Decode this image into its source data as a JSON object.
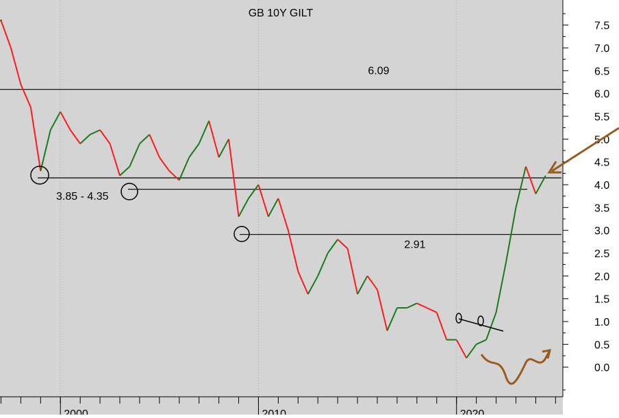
{
  "chart_data": {
    "type": "line",
    "title": "GB 10Y GILT",
    "x": [
      1997.0,
      1997.5,
      1998.0,
      1998.5,
      1999.0,
      1999.5,
      2000.0,
      2000.5,
      2001.0,
      2001.5,
      2002.0,
      2002.5,
      2003.0,
      2003.5,
      2004.0,
      2004.5,
      2005.0,
      2005.5,
      2006.0,
      2006.5,
      2007.0,
      2007.5,
      2008.0,
      2008.5,
      2009.0,
      2009.5,
      2010.0,
      2010.5,
      2011.0,
      2011.5,
      2012.0,
      2012.5,
      2013.0,
      2013.5,
      2014.0,
      2014.5,
      2015.0,
      2015.5,
      2016.0,
      2016.5,
      2017.0,
      2017.5,
      2018.0,
      2018.5,
      2019.0,
      2019.5,
      2020.0,
      2020.5,
      2021.0,
      2021.5,
      2022.0,
      2022.5,
      2023.0,
      2023.5,
      2024.0,
      2024.5
    ],
    "values": [
      7.6,
      7.0,
      6.2,
      5.7,
      4.3,
      5.2,
      5.6,
      5.2,
      4.9,
      5.1,
      5.2,
      4.9,
      4.2,
      4.4,
      4.9,
      5.1,
      4.6,
      4.3,
      4.1,
      4.6,
      4.9,
      5.4,
      4.6,
      5.0,
      3.3,
      3.7,
      4.0,
      3.3,
      3.7,
      3.0,
      2.1,
      1.6,
      2.0,
      2.5,
      2.8,
      2.6,
      1.6,
      2.0,
      1.7,
      0.8,
      1.3,
      1.3,
      1.4,
      1.3,
      1.2,
      0.6,
      0.6,
      0.2,
      0.5,
      0.6,
      1.2,
      2.3,
      3.5,
      4.4,
      3.8,
      4.2
    ],
    "up_color": "#1a7a1a",
    "down_color": "#ff1a1a",
    "levels": [
      6.09,
      4.15,
      3.9,
      2.91
    ],
    "annotation": "3.85 - 4.35",
    "xlim": [
      1996.95,
      2025.3
    ],
    "xticks": [
      2000,
      2010,
      2020
    ],
    "ylim": [
      -0.65,
      8.05
    ],
    "yticks": [
      {
        "value": 0,
        "label": "0.0"
      },
      0.5,
      {
        "value": 1,
        "label": "1.0"
      },
      1.5,
      {
        "value": 2,
        "label": "2.0"
      },
      2.5,
      {
        "value": 3,
        "label": "3.0"
      },
      3.5,
      {
        "value": 4,
        "label": "4.0"
      },
      4.5,
      {
        "value": 5,
        "label": "5.0"
      },
      5.5,
      {
        "value": 6,
        "label": "6.0"
      },
      6.5,
      {
        "value": 7,
        "label": "7.0"
      },
      7.5
    ]
  }
}
